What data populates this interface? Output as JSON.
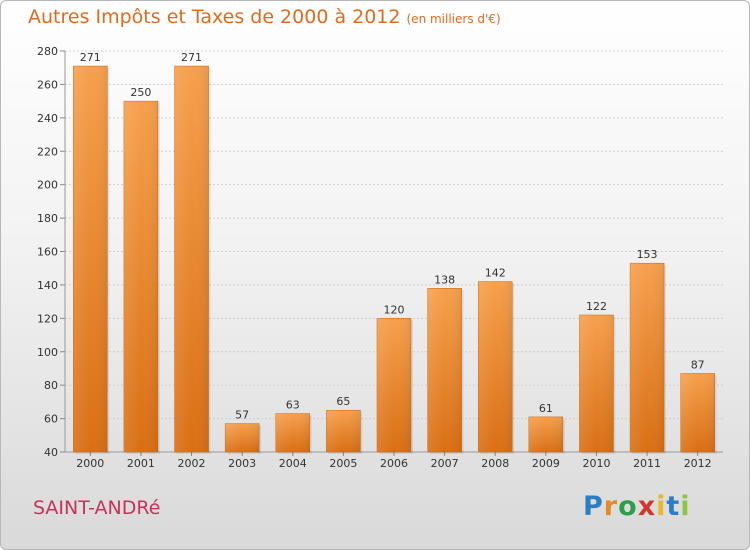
{
  "chart_data": {
    "type": "bar",
    "title": "Autres Impôts et Taxes de 2000 à 2012",
    "subtitle": "(en milliers d'€)",
    "categories": [
      "2000",
      "2001",
      "2002",
      "2003",
      "2004",
      "2005",
      "2006",
      "2007",
      "2008",
      "2009",
      "2010",
      "2011",
      "2012"
    ],
    "values": [
      271,
      250,
      271,
      57,
      63,
      65,
      120,
      138,
      142,
      61,
      122,
      153,
      87
    ],
    "ylim": [
      40,
      280
    ],
    "yticks": [
      40,
      60,
      80,
      100,
      120,
      140,
      160,
      180,
      200,
      220,
      240,
      260,
      280
    ],
    "grid": true,
    "bar_color": "#f08a2c"
  },
  "footer": {
    "commune": "SAINT-ANDRé",
    "brand": "Proxiti"
  }
}
